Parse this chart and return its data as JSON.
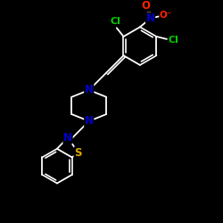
{
  "background_color": "#000000",
  "bond_color": "#ffffff",
  "atom_colors": {
    "N": "#0000cd",
    "O": "#ff2200",
    "S": "#ddaa00",
    "Cl": "#00cc00",
    "C": "#ffffff"
  },
  "font_size_atom": 7.5,
  "fig_size": [
    2.5,
    2.5
  ],
  "dpi": 100
}
